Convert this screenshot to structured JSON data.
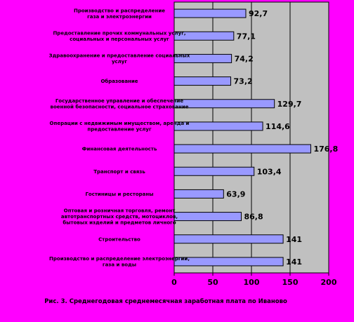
{
  "chart_data": {
    "type": "bar",
    "orientation": "horizontal",
    "categories": [
      [
        "Производство и распределение",
        "газа и электроэнергии"
      ],
      [
        "Предоставление прочих коммунальных услуг,",
        "социальных и персональных услуг"
      ],
      [
        "Здравоохранение и предоставление социальных",
        "услуг"
      ],
      [
        "Образование"
      ],
      [
        "Государственное управление и обеспечение",
        "военной безопасности, социальное страхование"
      ],
      [
        "Операции с недвижимым имуществом, аренда и",
        "предоставление услуг"
      ],
      [
        "Финансовая деятельность"
      ],
      [
        "Транспорт и связь"
      ],
      [
        "Гостиницы и рестораны"
      ],
      [
        "Оптовая и розничная торговля, ремонт",
        "автотранспортных средств, мотоциклов,",
        "бытовых изделий и предметов личного"
      ],
      [
        "Строительство"
      ],
      [
        "Производство и распределение электроэнергии,",
        "газа и воды"
      ]
    ],
    "values": [
      92.7,
      77.1,
      74.2,
      73.2,
      129.7,
      114.6,
      176.8,
      103.4,
      63.9,
      86.8,
      141,
      141
    ],
    "value_labels": [
      "92,7",
      "77,1",
      "74,2",
      "73,2",
      "129,7",
      "114,6",
      "176,8",
      "103,4",
      "63,9",
      "86,8",
      "141",
      "141"
    ],
    "xlim": [
      0,
      200
    ],
    "xticks": [
      "0",
      "50",
      "100",
      "150",
      "200"
    ],
    "gridlines": true,
    "colors": {
      "bar_fill": "#9999ff",
      "bar_stroke": "#000000",
      "plot_background": "#c0c0c0",
      "page_background": "#ff00ff"
    }
  },
  "caption": "Рис. 3. Среднегодовая среднемесячная заработная плата по Иваново"
}
